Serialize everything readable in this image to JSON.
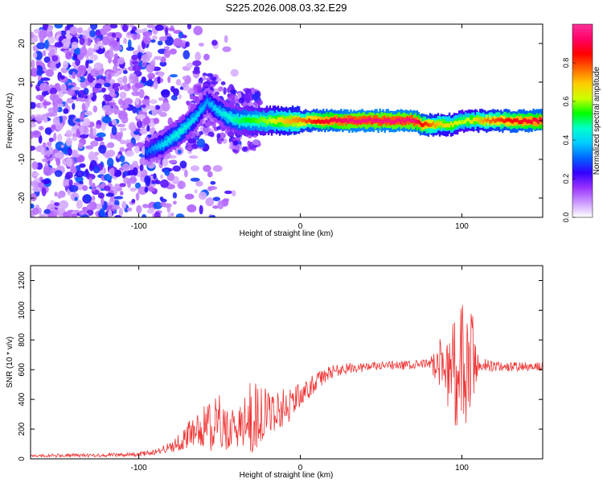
{
  "title": "S225.2026.008.03.32.E29",
  "chart_data": [
    {
      "type": "heatmap",
      "name": "spectrogram",
      "xlabel": "Height of straight line (km)",
      "ylabel": "Frequency (Hz)",
      "xlim": [
        -167,
        150
      ],
      "ylim": [
        -25,
        25
      ],
      "xticks": [
        -100,
        0,
        100
      ],
      "xtick_labels": [
        "-100",
        "0",
        "100"
      ],
      "yticks": [
        -20,
        -10,
        0,
        10,
        20
      ],
      "ytick_labels": [
        "-20",
        "-10",
        "0",
        "10",
        "20"
      ],
      "colorbar": {
        "label": "Normalized spectral amplitude",
        "range": [
          0,
          1
        ],
        "ticks": [
          0.0,
          0.2,
          0.4,
          0.6,
          0.8
        ],
        "tick_labels": [
          "0.0",
          "0.2",
          "0.4",
          "0.6",
          "0.8"
        ],
        "colors": [
          "#ffffff",
          "#cc99ff",
          "#9933ff",
          "#3300ff",
          "#0066ff",
          "#00ccff",
          "#00ffcc",
          "#00ff00",
          "#ccff00",
          "#ffcc00",
          "#ff6600",
          "#ff0000",
          "#ff0066",
          "#ff3399"
        ]
      },
      "ridge": {
        "x": [
          -95,
          -85,
          -75,
          -65,
          -58,
          -52,
          -45,
          -38,
          -30,
          -20,
          -10,
          0,
          10,
          30,
          50,
          70,
          75,
          85,
          95,
          100,
          105,
          115,
          130,
          150
        ],
        "frequency": [
          -8,
          -6,
          -3,
          1,
          5,
          3,
          1,
          0,
          0,
          0,
          0,
          0,
          0,
          0,
          0,
          0,
          -1,
          -1,
          -1,
          0,
          0,
          0,
          0,
          0
        ],
        "amplitude": [
          0.3,
          0.4,
          0.45,
          0.4,
          0.35,
          0.4,
          0.45,
          0.5,
          0.55,
          0.6,
          0.7,
          0.75,
          0.85,
          0.95,
          0.95,
          0.95,
          0.85,
          0.7,
          0.65,
          0.6,
          0.65,
          0.75,
          0.85,
          0.9
        ]
      }
    },
    {
      "type": "line",
      "name": "snr",
      "xlabel": "Height of straight line (km)",
      "ylabel": "SNR (10 * v/v)",
      "xlim": [
        -167,
        150
      ],
      "ylim": [
        0,
        1300
      ],
      "xticks": [
        -100,
        0,
        100
      ],
      "xtick_labels": [
        "-100",
        "0",
        "100"
      ],
      "yticks": [
        0,
        200,
        400,
        600,
        800,
        1000,
        1200
      ],
      "ytick_labels": [
        "0",
        "200",
        "400",
        "600",
        "800",
        "1000",
        "1200"
      ],
      "color": "#ee3333",
      "envelope": {
        "x": [
          -167,
          -120,
          -100,
          -90,
          -80,
          -70,
          -60,
          -50,
          -40,
          -35,
          -30,
          -20,
          -10,
          0,
          10,
          20,
          30,
          50,
          70,
          80,
          88,
          95,
          100,
          105,
          110,
          120,
          135,
          150
        ],
        "mean": [
          20,
          25,
          30,
          45,
          80,
          150,
          220,
          230,
          200,
          230,
          290,
          310,
          350,
          420,
          520,
          590,
          610,
          625,
          630,
          640,
          640,
          600,
          580,
          600,
          640,
          620,
          620,
          620
        ],
        "amplitude": [
          12,
          12,
          15,
          20,
          40,
          90,
          150,
          200,
          120,
          170,
          260,
          150,
          140,
          90,
          60,
          45,
          35,
          30,
          30,
          35,
          200,
          380,
          480,
          500,
          60,
          35,
          30,
          30
        ]
      }
    }
  ]
}
